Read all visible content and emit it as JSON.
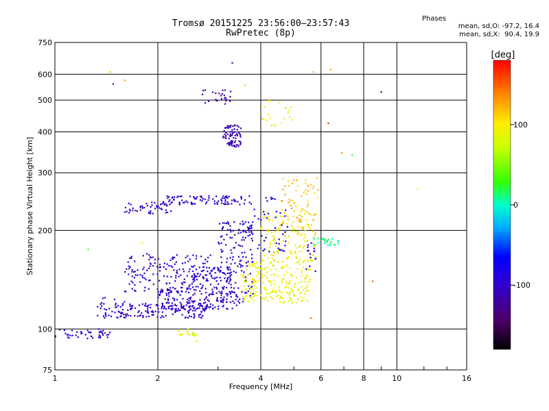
{
  "header": {
    "title": "Tromsø 20151225 23:56:00–23:57:43",
    "subtitle": "RwPretec (8p)"
  },
  "stats": {
    "title": "Phases",
    "o_mode": "mean, sd,O: -97.2, 16.4",
    "x_mode": "mean, sd,X:  90.4, 19.9"
  },
  "colorbar": {
    "label": "[deg]",
    "ticks": [
      "100",
      "0",
      "-100"
    ],
    "tick_values": [
      100,
      0,
      -100
    ],
    "range": [
      -180,
      180
    ]
  },
  "chart_data": {
    "type": "scatter",
    "xlabel": "Frequency [MHz]",
    "ylabel": "Stationary phase Virtual Height [km]",
    "x_scale": "log",
    "y_scale": "log",
    "xlim": [
      1,
      16
    ],
    "ylim": [
      75,
      750
    ],
    "x_ticks": [
      1,
      2,
      4,
      6,
      8,
      10,
      16
    ],
    "x_tick_labels": [
      "1",
      "2",
      "4",
      "6",
      "8",
      "10",
      "16"
    ],
    "y_ticks": [
      75,
      100,
      200,
      300,
      400,
      500,
      600,
      750
    ],
    "y_tick_labels": [
      "75",
      "100",
      "200",
      "300",
      "400",
      "500",
      "600",
      "750"
    ],
    "grid": true,
    "clusters": [
      {
        "x": [
          1.0,
          1.45
        ],
        "y": [
          93,
          100
        ],
        "phase": -100,
        "n": 45
      },
      {
        "x": [
          1.3,
          1.6
        ],
        "y": [
          108,
          125
        ],
        "phase": -100,
        "n": 35
      },
      {
        "x": [
          1.55,
          2.8
        ],
        "y": [
          108,
          120
        ],
        "phase": -105,
        "n": 140
      },
      {
        "x": [
          1.6,
          2.9
        ],
        "y": [
          130,
          170
        ],
        "phase": -100,
        "n": 160
      },
      {
        "x": [
          2.0,
          3.4
        ],
        "y": [
          115,
          135
        ],
        "phase": -100,
        "n": 180
      },
      {
        "x": [
          2.5,
          3.3
        ],
        "y": [
          140,
          155
        ],
        "phase": -90,
        "n": 60
      },
      {
        "x": [
          1.6,
          2.2
        ],
        "y": [
          225,
          245
        ],
        "phase": -100,
        "n": 50
      },
      {
        "x": [
          2.1,
          3.6
        ],
        "y": [
          240,
          255
        ],
        "phase": -100,
        "n": 90
      },
      {
        "x": [
          3.0,
          3.8
        ],
        "y": [
          120,
          215
        ],
        "phase": -100,
        "n": 150
      },
      {
        "x": [
          3.1,
          3.5
        ],
        "y": [
          360,
          420
        ],
        "phase": -110,
        "n": 80
      },
      {
        "x": [
          2.7,
          3.3
        ],
        "y": [
          485,
          540
        ],
        "phase": -115,
        "n": 25
      },
      {
        "x": [
          2.3,
          2.6
        ],
        "y": [
          95,
          100
        ],
        "phase": 80,
        "n": 20
      },
      {
        "x": [
          3.5,
          5.6
        ],
        "y": [
          120,
          160
        ],
        "phase": 90,
        "n": 220
      },
      {
        "x": [
          4.0,
          5.8
        ],
        "y": [
          160,
          230
        ],
        "phase": 100,
        "n": 150
      },
      {
        "x": [
          4.6,
          5.9
        ],
        "y": [
          210,
          290
        ],
        "phase": 120,
        "n": 60
      },
      {
        "x": [
          4.0,
          5.0
        ],
        "y": [
          410,
          500
        ],
        "phase": 100,
        "n": 20
      },
      {
        "x": [
          5.7,
          6.8
        ],
        "y": [
          180,
          190
        ],
        "phase": 5,
        "n": 25
      },
      {
        "x": [
          5.4,
          5.8
        ],
        "y": [
          150,
          190
        ],
        "phase": -100,
        "n": 15
      },
      {
        "x": [
          3.7,
          4.8
        ],
        "y": [
          170,
          260
        ],
        "phase": -80,
        "n": 50
      }
    ],
    "isolated_points": [
      {
        "x": 1.45,
        "y": 610,
        "phase": 50
      },
      {
        "x": 1.48,
        "y": 560,
        "phase": -100
      },
      {
        "x": 1.6,
        "y": 575,
        "phase": 130
      },
      {
        "x": 3.3,
        "y": 650,
        "phase": -110
      },
      {
        "x": 3.6,
        "y": 555,
        "phase": 60
      },
      {
        "x": 5.7,
        "y": 610,
        "phase": 120
      },
      {
        "x": 6.4,
        "y": 620,
        "phase": 130
      },
      {
        "x": 9.0,
        "y": 530,
        "phase": -130
      },
      {
        "x": 6.3,
        "y": 425,
        "phase": 170
      },
      {
        "x": 6.9,
        "y": 345,
        "phase": 140
      },
      {
        "x": 7.4,
        "y": 340,
        "phase": 20
      },
      {
        "x": 11.5,
        "y": 268,
        "phase": 80
      },
      {
        "x": 8.5,
        "y": 140,
        "phase": 150
      },
      {
        "x": 1.25,
        "y": 175,
        "phase": 20
      },
      {
        "x": 1.8,
        "y": 183,
        "phase": 80
      },
      {
        "x": 5.6,
        "y": 108,
        "phase": 150
      },
      {
        "x": 2.6,
        "y": 92,
        "phase": 80
      }
    ]
  }
}
